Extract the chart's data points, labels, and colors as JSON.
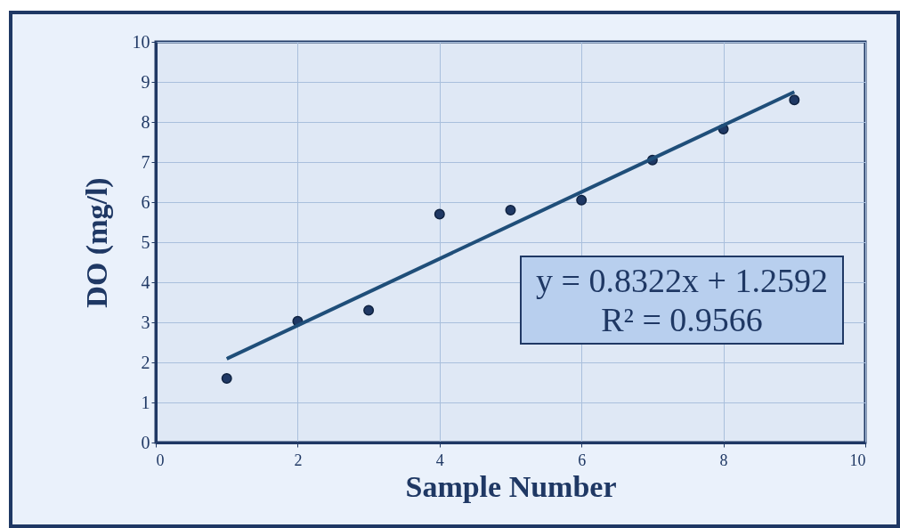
{
  "chart_data": {
    "type": "scatter",
    "xlabel": "Sample Number",
    "ylabel": "DO (mg/l)",
    "x": [
      1,
      2,
      3,
      4,
      5,
      6,
      7,
      8,
      9
    ],
    "series": [
      {
        "color": "#1f3864",
        "marker": "circle",
        "values": [
          1.6,
          3.03,
          3.3,
          5.7,
          5.8,
          6.05,
          7.05,
          7.82,
          8.55
        ]
      },
      {
        "type": "line",
        "color": "#1f4e79",
        "x": [
          1,
          9
        ],
        "values": [
          2.09,
          8.75
        ],
        "line_style": "solid"
      }
    ],
    "xlim": [
      0,
      10
    ],
    "xticks": [
      0,
      2,
      4,
      6,
      8,
      10
    ],
    "ylim": [
      0,
      10
    ],
    "yticks": [
      0,
      1,
      2,
      3,
      4,
      5,
      6,
      7,
      8,
      9,
      10
    ],
    "grid": true,
    "annotations": [
      "y = 0.8322x + 1.2592\nR² = 0.9566"
    ]
  }
}
